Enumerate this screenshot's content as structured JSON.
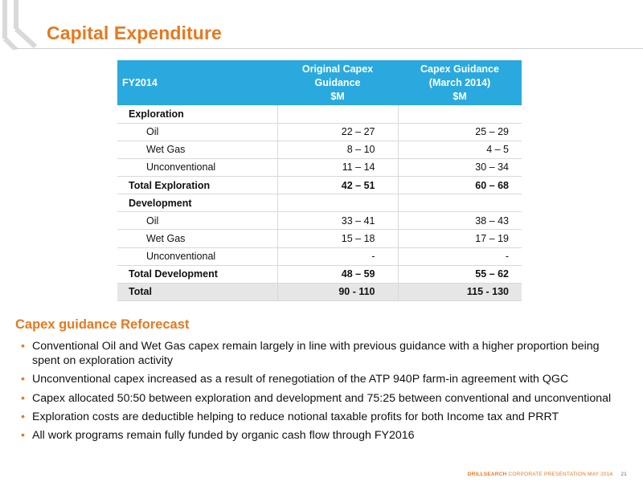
{
  "page": {
    "title": "Capital Expenditure"
  },
  "table": {
    "headers": {
      "c0": "FY2014",
      "c1_line1": "Original Capex",
      "c1_line2": "Guidance",
      "c1_line3": "$M",
      "c2_line1": "Capex Guidance",
      "c2_line2": "(March 2014)",
      "c2_line3": "$M"
    },
    "rows": [
      {
        "label": "Exploration",
        "original": "",
        "march": ""
      },
      {
        "label": "Oil",
        "original": "22 – 27",
        "march": "25 – 29"
      },
      {
        "label": "Wet Gas",
        "original": "8 – 10",
        "march": "4 – 5"
      },
      {
        "label": "Unconventional",
        "original": "11 – 14",
        "march": "30 – 34"
      },
      {
        "label": "Total Exploration",
        "original": "42 – 51",
        "march": "60 – 68"
      },
      {
        "label": "Development",
        "original": "",
        "march": ""
      },
      {
        "label": "Oil",
        "original": "33 – 41",
        "march": "38 – 43"
      },
      {
        "label": "Wet Gas",
        "original": "15 – 18",
        "march": "17 – 19"
      },
      {
        "label": "Unconventional",
        "original": "-",
        "march": "-"
      },
      {
        "label": "Total Development",
        "original": "48 – 59",
        "march": "55 – 62"
      },
      {
        "label": "Total",
        "original": "90 - 110",
        "march": "115 - 130"
      }
    ]
  },
  "reforecast": {
    "title": "Capex guidance Reforecast",
    "bullets": [
      "Conventional Oil and Wet Gas capex remain largely in line with previous guidance with a higher proportion being spent on exploration activity",
      "Unconventional capex increased as a result of renegotiation of the ATP 940P farm-in agreement with QGC",
      "Capex allocated 50:50 between exploration and development and 75:25 between conventional and unconventional",
      "Exploration costs are deductible helping to reduce notional taxable profits for both Income tax and PRRT",
      "All work programs remain fully funded by organic cash flow through FY2016"
    ],
    "bullet_char": "•"
  },
  "footer": {
    "brand": "DRILLSEARCH",
    "text": "CORPORATE PRESENTATION MAY 2014",
    "page": "21"
  },
  "colors": {
    "accent": "#e8781e",
    "table_header": "#2aa9df",
    "total_row_bg": "#e6e6e6"
  }
}
